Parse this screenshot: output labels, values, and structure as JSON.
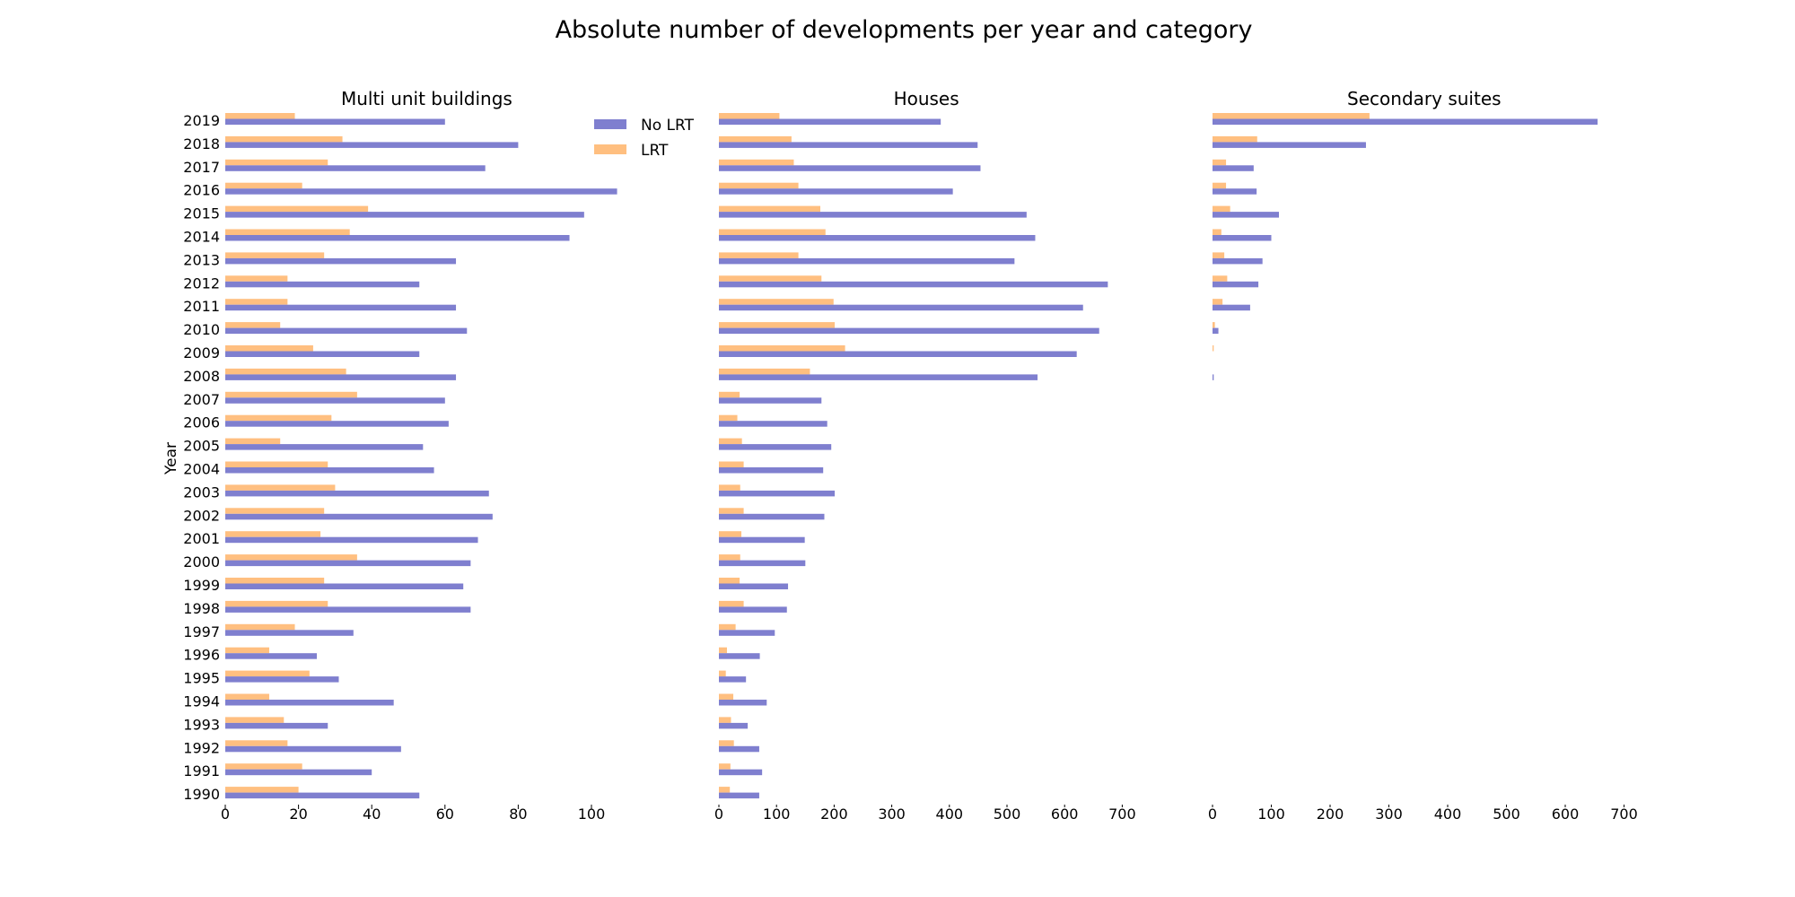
{
  "title": "Absolute number of developments per year and category",
  "ylabel": "Year",
  "legend": {
    "placement": "top-right of first panel",
    "entries": [
      {
        "label": "No LRT",
        "color": "#7f7fcf"
      },
      {
        "label": "LRT",
        "color": "#ffbf80"
      }
    ]
  },
  "colors": {
    "no_lrt": "#7f7fcf",
    "lrt": "#ffbf80"
  },
  "chart_data": [
    {
      "type": "bar",
      "orientation": "horizontal",
      "title": "Multi unit buildings",
      "xlim": [
        0,
        110
      ],
      "xticks": [
        "0",
        "20",
        "40",
        "60",
        "80",
        "100"
      ],
      "categories": [
        "2019",
        "2018",
        "2017",
        "2016",
        "2015",
        "2014",
        "2013",
        "2012",
        "2011",
        "2010",
        "2009",
        "2008",
        "2007",
        "2006",
        "2005",
        "2004",
        "2003",
        "2002",
        "2001",
        "2000",
        "1999",
        "1998",
        "1997",
        "1996",
        "1995",
        "1994",
        "1993",
        "1992",
        "1991",
        "1990"
      ],
      "series": [
        {
          "name": "No LRT",
          "values": [
            60,
            80,
            71,
            107,
            98,
            94,
            63,
            53,
            63,
            66,
            53,
            63,
            60,
            61,
            54,
            57,
            72,
            73,
            69,
            67,
            65,
            67,
            35,
            25,
            31,
            46,
            28,
            48,
            40,
            53
          ]
        },
        {
          "name": "LRT",
          "values": [
            19,
            32,
            28,
            21,
            39,
            34,
            27,
            17,
            17,
            15,
            24,
            33,
            36,
            29,
            15,
            28,
            30,
            27,
            26,
            36,
            27,
            28,
            19,
            12,
            23,
            12,
            16,
            17,
            21,
            20
          ]
        }
      ]
    },
    {
      "type": "bar",
      "orientation": "horizontal",
      "title": "Houses",
      "xlim": [
        0,
        720
      ],
      "xticks": [
        "0",
        "100",
        "200",
        "300",
        "400",
        "500",
        "600",
        "700"
      ],
      "categories": [
        "2019",
        "2018",
        "2017",
        "2016",
        "2015",
        "2014",
        "2013",
        "2012",
        "2011",
        "2010",
        "2009",
        "2008",
        "2007",
        "2006",
        "2005",
        "2004",
        "2003",
        "2002",
        "2001",
        "2000",
        "1999",
        "1998",
        "1997",
        "1996",
        "1995",
        "1994",
        "1993",
        "1992",
        "1991",
        "1990"
      ],
      "series": [
        {
          "name": "No LRT",
          "values": [
            385,
            449,
            454,
            406,
            534,
            549,
            513,
            675,
            632,
            660,
            621,
            553,
            178,
            188,
            195,
            181,
            201,
            183,
            149,
            150,
            120,
            118,
            97,
            71,
            47,
            83,
            50,
            70,
            75,
            70
          ]
        },
        {
          "name": "LRT",
          "values": [
            105,
            126,
            130,
            138,
            176,
            185,
            138,
            178,
            199,
            201,
            219,
            158,
            36,
            32,
            40,
            43,
            37,
            43,
            39,
            37,
            36,
            43,
            29,
            14,
            12,
            25,
            21,
            26,
            20,
            19
          ]
        }
      ]
    },
    {
      "type": "bar",
      "orientation": "horizontal",
      "title": "Secondary suites",
      "xlim": [
        0,
        720
      ],
      "xticks": [
        "0",
        "100",
        "200",
        "300",
        "400",
        "500",
        "600",
        "700"
      ],
      "categories": [
        "2019",
        "2018",
        "2017",
        "2016",
        "2015",
        "2014",
        "2013",
        "2012",
        "2011",
        "2010",
        "2009",
        "2008",
        "2007",
        "2006",
        "2005",
        "2004",
        "2003",
        "2002",
        "2001",
        "2000",
        "1999",
        "1998",
        "1997",
        "1996",
        "1995",
        "1994",
        "1993",
        "1992",
        "1991",
        "1990"
      ],
      "series": [
        {
          "name": "No LRT",
          "values": [
            655,
            261,
            70,
            75,
            113,
            100,
            85,
            78,
            64,
            10,
            0,
            2,
            0,
            0,
            0,
            0,
            0,
            0,
            0,
            0,
            0,
            0,
            0,
            0,
            0,
            0,
            0,
            0,
            0,
            0
          ]
        },
        {
          "name": "LRT",
          "values": [
            267,
            76,
            23,
            23,
            30,
            15,
            20,
            25,
            17,
            4,
            2,
            0,
            0,
            0,
            0,
            0,
            0,
            0,
            0,
            0,
            0,
            0,
            0,
            0,
            0,
            0,
            0,
            0,
            0,
            0
          ]
        }
      ]
    }
  ]
}
